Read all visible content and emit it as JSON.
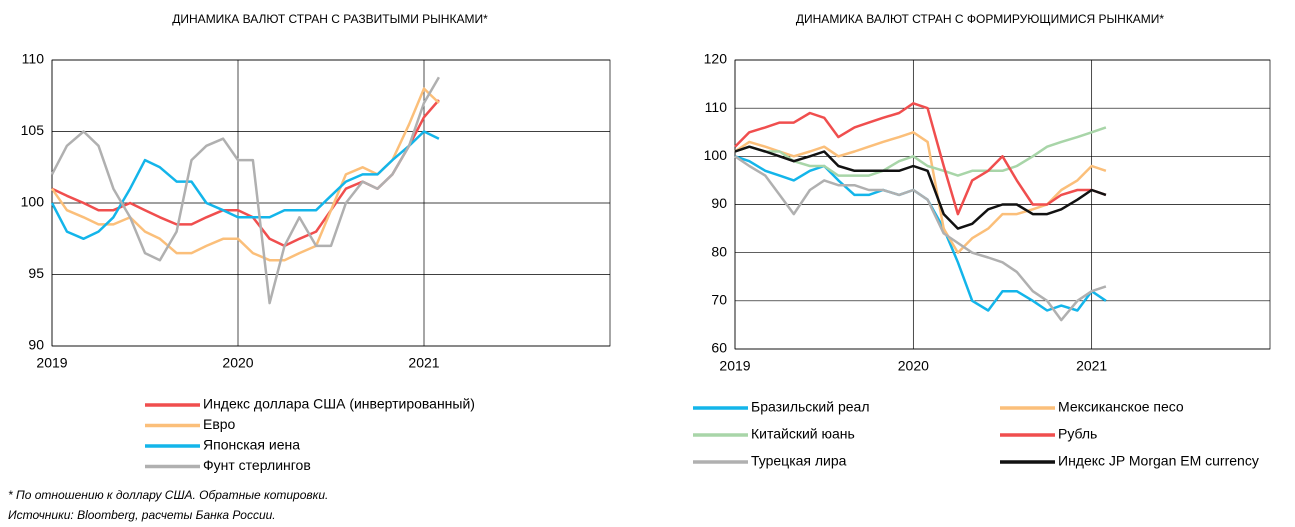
{
  "chart_data": [
    {
      "type": "line",
      "title": "ДИНАМИКА ВАЛЮТ СТРАН С РАЗВИТЫМИ РЫНКАМИ*",
      "x": [
        2019,
        2019.08,
        2019.17,
        2019.25,
        2019.33,
        2019.42,
        2019.5,
        2019.58,
        2019.67,
        2019.75,
        2019.83,
        2019.92,
        2020,
        2020.08,
        2020.17,
        2020.25,
        2020.33,
        2020.42,
        2020.5,
        2020.58,
        2020.67,
        2020.75,
        2020.83,
        2020.92,
        2021,
        2021.08
      ],
      "xlim": [
        2019,
        2022
      ],
      "xticks": [
        2019,
        2020,
        2021
      ],
      "ylim": [
        90,
        110
      ],
      "yticks": [
        90,
        95,
        100,
        105,
        110
      ],
      "grid": true,
      "series": [
        {
          "name": "Индекс доллара США (инвертированный)",
          "color": "#f04e4e",
          "values": [
            101,
            100.5,
            100,
            99.5,
            99.5,
            100,
            99.5,
            99,
            98.5,
            98.5,
            99,
            99.5,
            99.5,
            99,
            97.5,
            97,
            97.5,
            98,
            99.5,
            101,
            101.5,
            101,
            102,
            104,
            106,
            107.2
          ]
        },
        {
          "name": "Евро",
          "color": "#fbbf7a",
          "values": [
            101,
            99.5,
            99,
            98.5,
            98.5,
            99,
            98,
            97.5,
            96.5,
            96.5,
            97,
            97.5,
            97.5,
            96.5,
            96,
            96,
            96.5,
            97,
            99.5,
            102,
            102.5,
            102,
            103,
            105.5,
            108,
            107
          ]
        },
        {
          "name": "Японская иена",
          "color": "#13b5ea",
          "values": [
            100,
            98,
            97.5,
            98,
            99,
            101,
            103,
            102.5,
            101.5,
            101.5,
            100,
            99.5,
            99,
            99,
            99,
            99.5,
            99.5,
            99.5,
            100.5,
            101.5,
            102,
            102,
            103,
            104,
            105,
            104.5
          ]
        },
        {
          "name": "Фунт стерлингов",
          "color": "#b0b0b0",
          "values": [
            102,
            104,
            105,
            104,
            101,
            99,
            96.5,
            96,
            98,
            103,
            104,
            104.5,
            103,
            103,
            93,
            97,
            99,
            97,
            97,
            100,
            101.5,
            101,
            102,
            104,
            107,
            108.8
          ]
        }
      ]
    },
    {
      "type": "line",
      "title": "ДИНАМИКА ВАЛЮТ СТРАН С ФОРМИРУЮЩИМИСЯ РЫНКАМИ*",
      "x": [
        2019,
        2019.08,
        2019.17,
        2019.25,
        2019.33,
        2019.42,
        2019.5,
        2019.58,
        2019.67,
        2019.75,
        2019.83,
        2019.92,
        2020,
        2020.08,
        2020.17,
        2020.25,
        2020.33,
        2020.42,
        2020.5,
        2020.58,
        2020.67,
        2020.75,
        2020.83,
        2020.92,
        2021,
        2021.08
      ],
      "xlim": [
        2019,
        2022
      ],
      "xticks": [
        2019,
        2020,
        2021
      ],
      "ylim": [
        60,
        120
      ],
      "yticks": [
        60,
        70,
        80,
        90,
        100,
        110,
        120
      ],
      "grid": true,
      "series": [
        {
          "name": "Бразильский реал",
          "color": "#13b5ea",
          "values": [
            100,
            99,
            97,
            96,
            95,
            97,
            98,
            95,
            92,
            92,
            93,
            92,
            93,
            91,
            85,
            78,
            70,
            68,
            72,
            72,
            70,
            68,
            69,
            68,
            72,
            70
          ]
        },
        {
          "name": "Мексиканское песо",
          "color": "#fbbf7a",
          "values": [
            101,
            103,
            102,
            101,
            100,
            101,
            102,
            100,
            101,
            102,
            103,
            104,
            105,
            103,
            85,
            80,
            83,
            85,
            88,
            88,
            89,
            90,
            93,
            95,
            98,
            97
          ]
        },
        {
          "name": "Китайский юань",
          "color": "#a8d5a8",
          "values": [
            101,
            102,
            101,
            101,
            99,
            98,
            98,
            96,
            96,
            96,
            97,
            99,
            100,
            98,
            97,
            96,
            97,
            97,
            97,
            98,
            100,
            102,
            103,
            104,
            105,
            106
          ]
        },
        {
          "name": "Рубль",
          "color": "#f04e4e",
          "values": [
            102,
            105,
            106,
            107,
            107,
            109,
            108,
            104,
            106,
            107,
            108,
            109,
            111,
            110,
            98,
            88,
            95,
            97,
            100,
            95,
            90,
            90,
            92,
            93,
            93,
            92
          ]
        },
        {
          "name": "Турецкая лира",
          "color": "#b0b0b0",
          "values": [
            100,
            98,
            96,
            92,
            88,
            93,
            95,
            94,
            94,
            93,
            93,
            92,
            93,
            91,
            84,
            82,
            80,
            79,
            78,
            76,
            72,
            70,
            66,
            70,
            72,
            73
          ]
        },
        {
          "name": "Индекс JP Morgan EM currency",
          "color": "#111111",
          "values": [
            101,
            102,
            101,
            100,
            99,
            100,
            101,
            98,
            97,
            97,
            97,
            97,
            98,
            97,
            88,
            85,
            86,
            89,
            90,
            90,
            88,
            88,
            89,
            91,
            93,
            92
          ]
        }
      ]
    }
  ],
  "footnote": "* По отношению к доллару США. Обратные котировки.",
  "source": "Источники: Bloomberg, расчеты Банка России."
}
